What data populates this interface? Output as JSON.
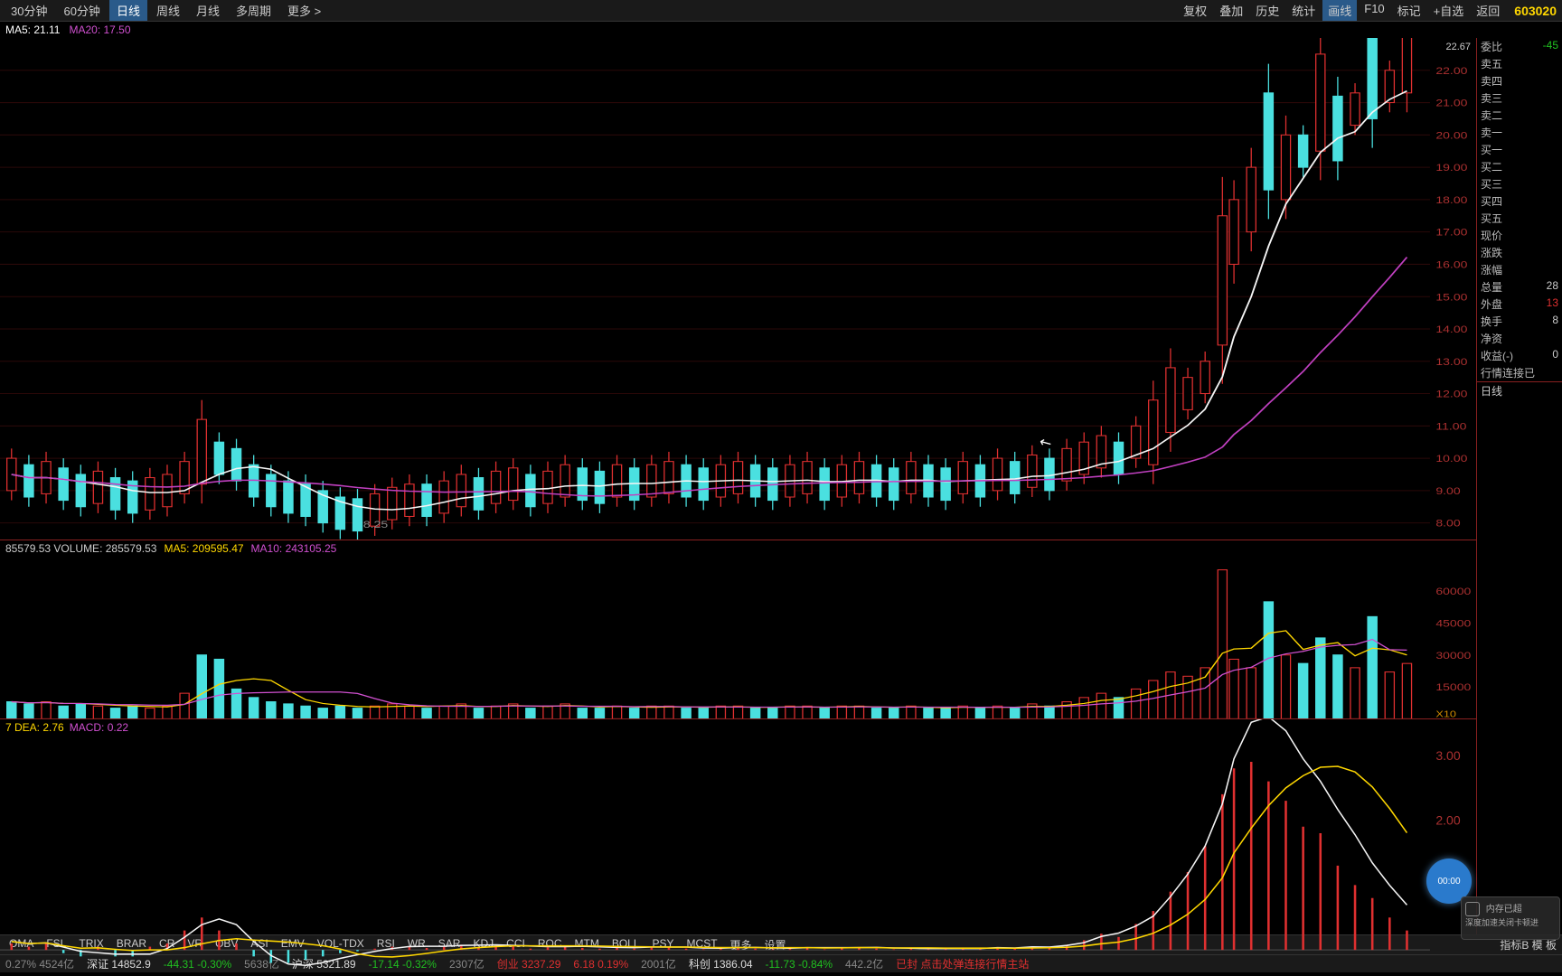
{
  "topbar_left": [
    "30分钟",
    "60分钟",
    "日线",
    "周线",
    "月线",
    "多周期",
    "更多 >"
  ],
  "topbar_left_active": 2,
  "topbar_right": [
    "复权",
    "叠加",
    "历史",
    "统计",
    "画线",
    "F10",
    "标记",
    "+自选",
    "返回"
  ],
  "topbar_right_active": 4,
  "stock_code": "603020",
  "ma_labels": {
    "ma5": "MA5: 21.11",
    "ma20": "MA20: 17.50"
  },
  "price_current": "22.67",
  "price_axis": [
    "22.00",
    "21.00",
    "20.00",
    "19.00",
    "18.00",
    "17.00",
    "16.00",
    "15.00",
    "14.00",
    "13.00",
    "12.00",
    "11.00",
    "10.00",
    "9.00",
    "8.00"
  ],
  "price_low_label": "8.25",
  "candles_early": {
    "comment": "mostly sideways 8-10 then surge",
    "colors": {
      "up_fill": "#000",
      "up_stroke": "#e03030",
      "down_fill": "#4ae0e0",
      "down_stroke": "#4ae0e0"
    },
    "data": [
      [
        10,
        9.5,
        1,
        0
      ],
      [
        25,
        9.3,
        1,
        1
      ],
      [
        40,
        9.4,
        1,
        0
      ],
      [
        55,
        9.2,
        1,
        1
      ],
      [
        70,
        9.0,
        1,
        1
      ],
      [
        85,
        9.1,
        1,
        0
      ],
      [
        100,
        8.9,
        1,
        1
      ],
      [
        115,
        8.8,
        1,
        1
      ],
      [
        130,
        8.9,
        1,
        0
      ],
      [
        145,
        9.0,
        1,
        0
      ],
      [
        160,
        9.4,
        1,
        0
      ],
      [
        175,
        10.2,
        2,
        0
      ],
      [
        190,
        10.0,
        1,
        1
      ],
      [
        205,
        9.8,
        1,
        1
      ],
      [
        220,
        9.3,
        1,
        1
      ],
      [
        235,
        9.0,
        1,
        1
      ],
      [
        250,
        8.8,
        1,
        1
      ],
      [
        265,
        8.7,
        1,
        1
      ],
      [
        280,
        8.5,
        1,
        1
      ],
      [
        295,
        8.3,
        1,
        1
      ],
      [
        310,
        8.25,
        1,
        1
      ],
      [
        325,
        8.4,
        1,
        0
      ],
      [
        340,
        8.6,
        1,
        0
      ],
      [
        355,
        8.7,
        1,
        0
      ],
      [
        370,
        8.7,
        1,
        1
      ],
      [
        385,
        8.8,
        1,
        0
      ],
      [
        400,
        9.0,
        1,
        0
      ],
      [
        415,
        8.9,
        1,
        1
      ],
      [
        430,
        9.1,
        1,
        0
      ],
      [
        445,
        9.2,
        1,
        0
      ],
      [
        460,
        9.0,
        1,
        1
      ],
      [
        475,
        9.1,
        1,
        0
      ],
      [
        490,
        9.3,
        1,
        0
      ],
      [
        505,
        9.2,
        1,
        1
      ],
      [
        520,
        9.1,
        1,
        1
      ],
      [
        535,
        9.3,
        1,
        0
      ],
      [
        550,
        9.2,
        1,
        1
      ],
      [
        565,
        9.3,
        1,
        0
      ],
      [
        580,
        9.4,
        1,
        0
      ],
      [
        595,
        9.3,
        1,
        1
      ],
      [
        610,
        9.2,
        1,
        1
      ],
      [
        625,
        9.3,
        1,
        0
      ],
      [
        640,
        9.4,
        1,
        0
      ],
      [
        655,
        9.3,
        1,
        1
      ],
      [
        670,
        9.2,
        1,
        1
      ],
      [
        685,
        9.3,
        1,
        0
      ],
      [
        700,
        9.4,
        1,
        0
      ],
      [
        715,
        9.2,
        1,
        1
      ],
      [
        730,
        9.3,
        1,
        0
      ],
      [
        745,
        9.4,
        1,
        0
      ],
      [
        760,
        9.3,
        1,
        1
      ],
      [
        775,
        9.2,
        1,
        1
      ],
      [
        790,
        9.4,
        1,
        0
      ],
      [
        805,
        9.3,
        1,
        1
      ],
      [
        820,
        9.2,
        1,
        1
      ],
      [
        835,
        9.4,
        1,
        0
      ],
      [
        850,
        9.3,
        1,
        1
      ],
      [
        865,
        9.5,
        1,
        0
      ],
      [
        880,
        9.4,
        1,
        1
      ],
      [
        895,
        9.6,
        1,
        0
      ],
      [
        910,
        9.5,
        1,
        1
      ],
      [
        925,
        9.8,
        1,
        0
      ],
      [
        940,
        10.0,
        1,
        0
      ],
      [
        955,
        10.2,
        1,
        0
      ],
      [
        970,
        10.0,
        1,
        1
      ],
      [
        985,
        10.5,
        1,
        0
      ],
      [
        1000,
        10.8,
        2,
        0
      ],
      [
        1015,
        11.8,
        2,
        0
      ],
      [
        1030,
        12.0,
        1,
        0
      ],
      [
        1045,
        12.5,
        1,
        0
      ],
      [
        1060,
        15.5,
        4,
        0
      ],
      [
        1070,
        17.0,
        2,
        0
      ],
      [
        1085,
        18.0,
        2,
        0
      ],
      [
        1100,
        19.8,
        3,
        1
      ],
      [
        1115,
        19.0,
        2,
        0
      ],
      [
        1130,
        19.5,
        1,
        1
      ],
      [
        1145,
        21.0,
        3,
        0
      ],
      [
        1160,
        20.2,
        2,
        1
      ],
      [
        1175,
        20.8,
        1,
        0
      ],
      [
        1190,
        22.0,
        3,
        1
      ],
      [
        1205,
        21.5,
        1,
        0
      ],
      [
        1220,
        22.3,
        2,
        0
      ]
    ]
  },
  "ma5_line_color": "#f5f5f5",
  "ma20_line_color": "#c040c0",
  "vol_labels": {
    "v": "85579.53  VOLUME: 285579.53",
    "ma5": "MA5: 209595.47",
    "ma10": "MA10: 243105.25"
  },
  "vol_axis": [
    "60000",
    "45000",
    "30000",
    "15000"
  ],
  "vol_x10": "X10",
  "vol_data": [
    [
      10,
      8,
      1
    ],
    [
      25,
      7,
      1
    ],
    [
      40,
      8,
      0
    ],
    [
      55,
      6,
      1
    ],
    [
      70,
      7,
      1
    ],
    [
      85,
      6,
      0
    ],
    [
      100,
      5,
      1
    ],
    [
      115,
      6,
      1
    ],
    [
      130,
      5,
      0
    ],
    [
      145,
      6,
      0
    ],
    [
      160,
      12,
      0
    ],
    [
      175,
      30,
      1
    ],
    [
      190,
      28,
      1
    ],
    [
      205,
      14,
      1
    ],
    [
      220,
      10,
      1
    ],
    [
      235,
      8,
      1
    ],
    [
      250,
      7,
      1
    ],
    [
      265,
      6,
      1
    ],
    [
      280,
      5,
      1
    ],
    [
      295,
      6,
      1
    ],
    [
      310,
      5,
      1
    ],
    [
      325,
      6,
      0
    ],
    [
      340,
      7,
      0
    ],
    [
      355,
      6,
      0
    ],
    [
      370,
      5,
      1
    ],
    [
      385,
      6,
      0
    ],
    [
      400,
      7,
      0
    ],
    [
      415,
      5,
      1
    ],
    [
      430,
      6,
      0
    ],
    [
      445,
      7,
      0
    ],
    [
      460,
      5,
      1
    ],
    [
      475,
      6,
      0
    ],
    [
      490,
      7,
      0
    ],
    [
      505,
      5,
      1
    ],
    [
      520,
      5,
      1
    ],
    [
      535,
      6,
      0
    ],
    [
      550,
      5,
      1
    ],
    [
      565,
      6,
      0
    ],
    [
      580,
      6,
      0
    ],
    [
      595,
      5,
      1
    ],
    [
      610,
      5,
      1
    ],
    [
      625,
      6,
      0
    ],
    [
      640,
      6,
      0
    ],
    [
      655,
      5,
      1
    ],
    [
      670,
      5,
      1
    ],
    [
      685,
      6,
      0
    ],
    [
      700,
      6,
      0
    ],
    [
      715,
      5,
      1
    ],
    [
      730,
      6,
      0
    ],
    [
      745,
      6,
      0
    ],
    [
      760,
      5,
      1
    ],
    [
      775,
      5,
      1
    ],
    [
      790,
      6,
      0
    ],
    [
      805,
      5,
      1
    ],
    [
      820,
      5,
      1
    ],
    [
      835,
      6,
      0
    ],
    [
      850,
      5,
      1
    ],
    [
      865,
      6,
      0
    ],
    [
      880,
      5,
      1
    ],
    [
      895,
      7,
      0
    ],
    [
      910,
      6,
      1
    ],
    [
      925,
      8,
      0
    ],
    [
      940,
      10,
      0
    ],
    [
      955,
      12,
      0
    ],
    [
      970,
      10,
      1
    ],
    [
      985,
      14,
      0
    ],
    [
      1000,
      18,
      0
    ],
    [
      1015,
      22,
      0
    ],
    [
      1030,
      20,
      0
    ],
    [
      1045,
      24,
      0
    ],
    [
      1060,
      70,
      0
    ],
    [
      1070,
      28,
      0
    ],
    [
      1085,
      24,
      0
    ],
    [
      1100,
      55,
      1
    ],
    [
      1115,
      30,
      0
    ],
    [
      1130,
      26,
      1
    ],
    [
      1145,
      38,
      1
    ],
    [
      1160,
      30,
      1
    ],
    [
      1175,
      24,
      0
    ],
    [
      1190,
      48,
      1
    ],
    [
      1205,
      22,
      0
    ],
    [
      1220,
      26,
      0
    ]
  ],
  "macd_labels": {
    "dea": "7 DEA: 2.76",
    "macd": "MACD: 0.22"
  },
  "macd_axis": [
    "3.00",
    "2.00"
  ],
  "macd_line_colors": {
    "dif": "#f5f5f5",
    "dea": "#ffd700"
  },
  "macd_bars": [
    [
      10,
      0.1,
      0
    ],
    [
      25,
      0.05,
      1
    ],
    [
      40,
      0.1,
      0
    ],
    [
      55,
      -0.05,
      1
    ],
    [
      70,
      -0.1,
      1
    ],
    [
      85,
      0.05,
      0
    ],
    [
      100,
      -0.1,
      1
    ],
    [
      115,
      -0.1,
      1
    ],
    [
      130,
      0.05,
      0
    ],
    [
      145,
      0.1,
      0
    ],
    [
      160,
      0.3,
      0
    ],
    [
      175,
      0.5,
      0
    ],
    [
      190,
      0.3,
      1
    ],
    [
      205,
      0.1,
      1
    ],
    [
      220,
      -0.1,
      1
    ],
    [
      235,
      -0.2,
      1
    ],
    [
      250,
      -0.2,
      1
    ],
    [
      265,
      -0.15,
      1
    ],
    [
      280,
      -0.1,
      1
    ],
    [
      295,
      -0.05,
      1
    ],
    [
      310,
      -0.02,
      1
    ],
    [
      325,
      0.02,
      0
    ],
    [
      340,
      0.05,
      0
    ],
    [
      355,
      0.05,
      0
    ],
    [
      370,
      0.03,
      1
    ],
    [
      385,
      0.05,
      0
    ],
    [
      400,
      0.08,
      0
    ],
    [
      415,
      0.04,
      1
    ],
    [
      430,
      0.06,
      0
    ],
    [
      445,
      0.06,
      0
    ],
    [
      460,
      0.02,
      1
    ],
    [
      475,
      0.04,
      0
    ],
    [
      490,
      0.06,
      0
    ],
    [
      505,
      0.03,
      1
    ],
    [
      520,
      0.02,
      1
    ],
    [
      535,
      0.04,
      0
    ],
    [
      550,
      0.02,
      1
    ],
    [
      565,
      0.04,
      0
    ],
    [
      580,
      0.04,
      0
    ],
    [
      595,
      0.02,
      1
    ],
    [
      610,
      0.01,
      1
    ],
    [
      625,
      0.03,
      0
    ],
    [
      640,
      0.04,
      0
    ],
    [
      655,
      0.02,
      1
    ],
    [
      670,
      0.01,
      1
    ],
    [
      685,
      0.03,
      0
    ],
    [
      700,
      0.04,
      0
    ],
    [
      715,
      0.01,
      1
    ],
    [
      730,
      0.03,
      0
    ],
    [
      745,
      0.04,
      0
    ],
    [
      760,
      0.02,
      1
    ],
    [
      775,
      0.01,
      1
    ],
    [
      790,
      0.03,
      0
    ],
    [
      805,
      0.01,
      1
    ],
    [
      820,
      0.01,
      1
    ],
    [
      835,
      0.03,
      0
    ],
    [
      850,
      0.01,
      1
    ],
    [
      865,
      0.04,
      0
    ],
    [
      880,
      0.02,
      1
    ],
    [
      895,
      0.05,
      0
    ],
    [
      910,
      0.03,
      1
    ],
    [
      925,
      0.08,
      0
    ],
    [
      940,
      0.15,
      0
    ],
    [
      955,
      0.25,
      0
    ],
    [
      970,
      0.2,
      0
    ],
    [
      985,
      0.4,
      0
    ],
    [
      1000,
      0.6,
      0
    ],
    [
      1015,
      0.9,
      0
    ],
    [
      1030,
      1.2,
      0
    ],
    [
      1045,
      1.6,
      0
    ],
    [
      1060,
      2.4,
      0
    ],
    [
      1070,
      2.8,
      0
    ],
    [
      1085,
      2.9,
      0
    ],
    [
      1100,
      2.6,
      0
    ],
    [
      1115,
      2.3,
      0
    ],
    [
      1130,
      1.9,
      0
    ],
    [
      1145,
      1.8,
      0
    ],
    [
      1160,
      1.3,
      0
    ],
    [
      1175,
      1.0,
      0
    ],
    [
      1190,
      0.8,
      0
    ],
    [
      1205,
      0.5,
      0
    ],
    [
      1220,
      0.3,
      0
    ]
  ],
  "indicators": [
    "OMA",
    "FSL",
    "TRIX",
    "BRAR",
    "CR",
    "VR",
    "OBV",
    "ASI",
    "EMV",
    "VOL-TDX",
    "RSI",
    "WR",
    "SAR",
    "KDJ",
    "CCI",
    "ROC",
    "MTM",
    "BOLL",
    "PSY",
    "MCST",
    "更多",
    "设置"
  ],
  "indic_right": "指标B 模 板",
  "right_panel": [
    {
      "l": "委比",
      "v": "-45",
      "c": "green"
    },
    {
      "l": "卖五",
      "v": "",
      "c": ""
    },
    {
      "l": "卖四",
      "v": "",
      "c": ""
    },
    {
      "l": "卖三",
      "v": "",
      "c": ""
    },
    {
      "l": "卖二",
      "v": "",
      "c": ""
    },
    {
      "l": "卖一",
      "v": "",
      "c": "red"
    },
    {
      "l": "买一",
      "v": "",
      "c": "red"
    },
    {
      "l": "买二",
      "v": "",
      "c": ""
    },
    {
      "l": "买三",
      "v": "",
      "c": ""
    },
    {
      "l": "买四",
      "v": "",
      "c": ""
    },
    {
      "l": "买五",
      "v": "",
      "c": ""
    },
    {
      "l": "现价",
      "v": "",
      "c": "red"
    },
    {
      "l": "涨跌",
      "v": "",
      "c": "red"
    },
    {
      "l": "涨幅",
      "v": "",
      "c": "red"
    },
    {
      "l": "总量",
      "v": "28",
      "c": ""
    },
    {
      "l": "外盘",
      "v": "13",
      "c": "red"
    },
    {
      "l": "换手",
      "v": "8",
      "c": ""
    },
    {
      "l": "净资",
      "v": "",
      "c": ""
    },
    {
      "l": "收益(-)",
      "v": "0",
      "c": ""
    },
    {
      "l": "行情连接已",
      "v": "",
      "c": ""
    }
  ],
  "right_panel_bottom": "日线",
  "status": [
    {
      "t": "0.27% 4524亿",
      "c": ""
    },
    {
      "t": "深证 14852.9",
      "c": "white"
    },
    {
      "t": "-44.31 -0.30%",
      "c": "green"
    },
    {
      "t": "5638亿",
      "c": ""
    },
    {
      "t": "沪深 5321.89",
      "c": "white"
    },
    {
      "t": "-17.14 -0.32%",
      "c": "green"
    },
    {
      "t": "2307亿",
      "c": ""
    },
    {
      "t": "创业 3237.29",
      "c": "red"
    },
    {
      "t": "6.18 0.19%",
      "c": "red"
    },
    {
      "t": "2001亿",
      "c": ""
    },
    {
      "t": "科创 1386.04",
      "c": "white"
    },
    {
      "t": "-11.73 -0.84%",
      "c": "green"
    },
    {
      "t": "442.2亿",
      "c": ""
    },
    {
      "t": "已封 点击处弹连接行情主站",
      "c": "red"
    }
  ],
  "timer": "00:00",
  "shield": "内存已超",
  "shield_sub": "深度加速关闭卡顿进"
}
